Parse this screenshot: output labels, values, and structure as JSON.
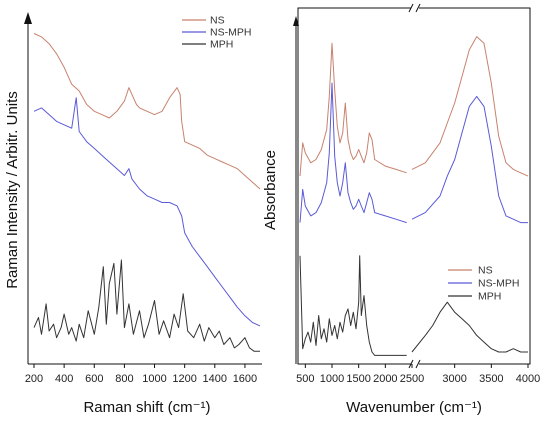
{
  "chart_data": [
    {
      "type": "line",
      "xlabel": "Raman shift (cm⁻¹)",
      "ylabel": "Raman Intensity / Arbitr. Units",
      "xlim": [
        200,
        1700
      ],
      "xticks": [
        200,
        400,
        600,
        800,
        1000,
        1200,
        1400,
        1600
      ],
      "legend_position": "top-right",
      "colors": {
        "NS": "#c8826e",
        "NS-MPH": "#5a5ad8",
        "MPH": "#333333"
      },
      "series": [
        {
          "name": "NS",
          "x": [
            200,
            250,
            300,
            350,
            400,
            450,
            500,
            550,
            600,
            650,
            700,
            750,
            800,
            830,
            850,
            880,
            900,
            950,
            1000,
            1050,
            1100,
            1150,
            1170,
            1180,
            1200,
            1250,
            1300,
            1350,
            1400,
            1450,
            1500,
            1550,
            1600,
            1650,
            1700
          ],
          "y": [
            9.6,
            9.5,
            9.3,
            9.0,
            8.6,
            8.1,
            7.9,
            7.5,
            7.3,
            7.2,
            7.1,
            7.3,
            7.6,
            8.0,
            7.8,
            7.5,
            7.4,
            7.3,
            7.2,
            7.3,
            7.7,
            8.0,
            7.8,
            7.0,
            6.4,
            6.3,
            6.2,
            6.0,
            5.9,
            5.8,
            5.7,
            5.6,
            5.4,
            5.2,
            5.0
          ]
        },
        {
          "name": "NS-MPH",
          "x": [
            200,
            250,
            300,
            350,
            400,
            450,
            480,
            500,
            550,
            600,
            650,
            700,
            750,
            800,
            830,
            850,
            900,
            950,
            1000,
            1050,
            1100,
            1150,
            1180,
            1200,
            1250,
            1300,
            1350,
            1400,
            1450,
            1500,
            1550,
            1600,
            1650,
            1700
          ],
          "y": [
            7.3,
            7.4,
            7.2,
            7.0,
            6.9,
            6.8,
            7.7,
            6.7,
            6.4,
            6.2,
            6.0,
            5.8,
            5.6,
            5.4,
            5.6,
            5.3,
            5.0,
            4.8,
            4.7,
            4.6,
            4.6,
            4.5,
            4.2,
            3.7,
            3.3,
            3.0,
            2.7,
            2.4,
            2.1,
            1.8,
            1.5,
            1.25,
            1.05,
            0.95
          ]
        },
        {
          "name": "MPH",
          "x": [
            200,
            230,
            250,
            280,
            300,
            330,
            350,
            380,
            400,
            430,
            450,
            480,
            500,
            530,
            560,
            600,
            630,
            660,
            680,
            700,
            730,
            750,
            780,
            800,
            830,
            860,
            900,
            930,
            960,
            1000,
            1030,
            1060,
            1100,
            1130,
            1160,
            1190,
            1220,
            1260,
            1300,
            1330,
            1360,
            1400,
            1430,
            1460,
            1500,
            1530,
            1560,
            1600,
            1630,
            1660,
            1700
          ],
          "y": [
            0.9,
            1.2,
            0.7,
            1.6,
            0.8,
            1.0,
            0.6,
            0.9,
            1.3,
            0.7,
            0.9,
            0.5,
            1.0,
            0.6,
            1.4,
            0.7,
            1.5,
            2.7,
            1.0,
            2.2,
            2.8,
            1.3,
            2.9,
            0.9,
            1.6,
            0.7,
            1.4,
            0.6,
            1.0,
            1.7,
            0.7,
            1.1,
            0.6,
            1.3,
            0.9,
            1.9,
            0.8,
            0.6,
            1.0,
            0.5,
            0.9,
            0.6,
            0.8,
            0.4,
            0.6,
            0.3,
            0.4,
            0.6,
            0.3,
            0.2,
            0.2
          ]
        }
      ]
    },
    {
      "type": "line",
      "xlabel": "Wavenumber (cm⁻¹)",
      "ylabel": "Absorbance",
      "axis_break": [
        2500,
        2500
      ],
      "xticks": [
        500,
        1000,
        1500,
        2000,
        2500,
        3000,
        3500,
        4000
      ],
      "xlim": [
        400,
        4000
      ],
      "legend_position": "bottom-right",
      "colors": {
        "NS": "#c8826e",
        "NS-MPH": "#5a5ad8",
        "MPH": "#333333"
      },
      "series": [
        {
          "name": "NS",
          "x": [
            400,
            450,
            500,
            600,
            700,
            800,
            900,
            950,
            1000,
            1050,
            1100,
            1150,
            1200,
            1250,
            1300,
            1350,
            1400,
            1450,
            1500,
            1550,
            1600,
            1650,
            1700,
            1750,
            1800,
            2000,
            2200,
            2400,
            2500,
            2600,
            2800,
            2900,
            3000,
            3100,
            3200,
            3300,
            3400,
            3500,
            3600,
            3700,
            3800,
            3900,
            4000
          ],
          "y": [
            5.6,
            6.6,
            6.3,
            6.0,
            6.1,
            6.4,
            7.0,
            8.0,
            9.6,
            8.2,
            7.1,
            6.6,
            6.9,
            7.8,
            6.7,
            6.3,
            6.1,
            6.2,
            6.4,
            6.2,
            6.0,
            6.3,
            6.9,
            6.7,
            6.1,
            5.9,
            5.8,
            5.7,
            5.8,
            6.0,
            6.6,
            7.2,
            7.8,
            8.6,
            9.4,
            9.8,
            9.6,
            8.4,
            6.8,
            6.0,
            5.8,
            5.7,
            5.6
          ]
        },
        {
          "name": "NS-MPH",
          "x": [
            400,
            450,
            500,
            600,
            700,
            800,
            900,
            950,
            1000,
            1050,
            1100,
            1150,
            1200,
            1250,
            1300,
            1350,
            1400,
            1450,
            1500,
            1550,
            1600,
            1650,
            1700,
            1750,
            1800,
            2000,
            2200,
            2400,
            2500,
            2600,
            2800,
            2900,
            3000,
            3100,
            3200,
            3300,
            3400,
            3500,
            3600,
            3700,
            3800,
            3900,
            4000
          ],
          "y": [
            4.2,
            5.2,
            4.7,
            4.4,
            4.5,
            4.8,
            5.4,
            6.3,
            8.4,
            6.2,
            5.4,
            5.0,
            5.4,
            6.0,
            5.1,
            4.8,
            4.6,
            4.7,
            4.9,
            4.7,
            4.5,
            4.8,
            5.1,
            4.9,
            4.5,
            4.4,
            4.3,
            4.2,
            4.3,
            4.5,
            5.0,
            5.6,
            6.1,
            6.9,
            7.7,
            8.0,
            7.7,
            6.5,
            5.0,
            4.4,
            4.3,
            4.2,
            4.2
          ]
        },
        {
          "name": "MPH",
          "x": [
            400,
            450,
            500,
            550,
            600,
            650,
            700,
            750,
            800,
            850,
            900,
            950,
            1000,
            1050,
            1100,
            1150,
            1200,
            1250,
            1300,
            1350,
            1400,
            1450,
            1500,
            1520,
            1550,
            1600,
            1650,
            1700,
            1750,
            1800,
            2000,
            2200,
            2400,
            2500,
            2600,
            2700,
            2800,
            2900,
            3000,
            3100,
            3200,
            3300,
            3400,
            3500,
            3600,
            3700,
            3800,
            3900,
            4000
          ],
          "y": [
            3.2,
            0.4,
            0.7,
            0.9,
            0.6,
            1.2,
            0.5,
            1.4,
            0.7,
            1.0,
            0.6,
            1.3,
            0.8,
            1.1,
            0.7,
            1.2,
            0.9,
            1.4,
            1.6,
            1.1,
            1.5,
            1.0,
            1.8,
            3.2,
            1.4,
            2.0,
            1.1,
            0.6,
            0.3,
            0.2,
            0.2,
            0.2,
            0.2,
            0.3,
            0.8,
            1.1,
            1.5,
            1.8,
            1.5,
            1.3,
            1.1,
            0.8,
            0.6,
            0.4,
            0.3,
            0.3,
            0.4,
            0.3,
            0.3
          ]
        }
      ]
    }
  ]
}
